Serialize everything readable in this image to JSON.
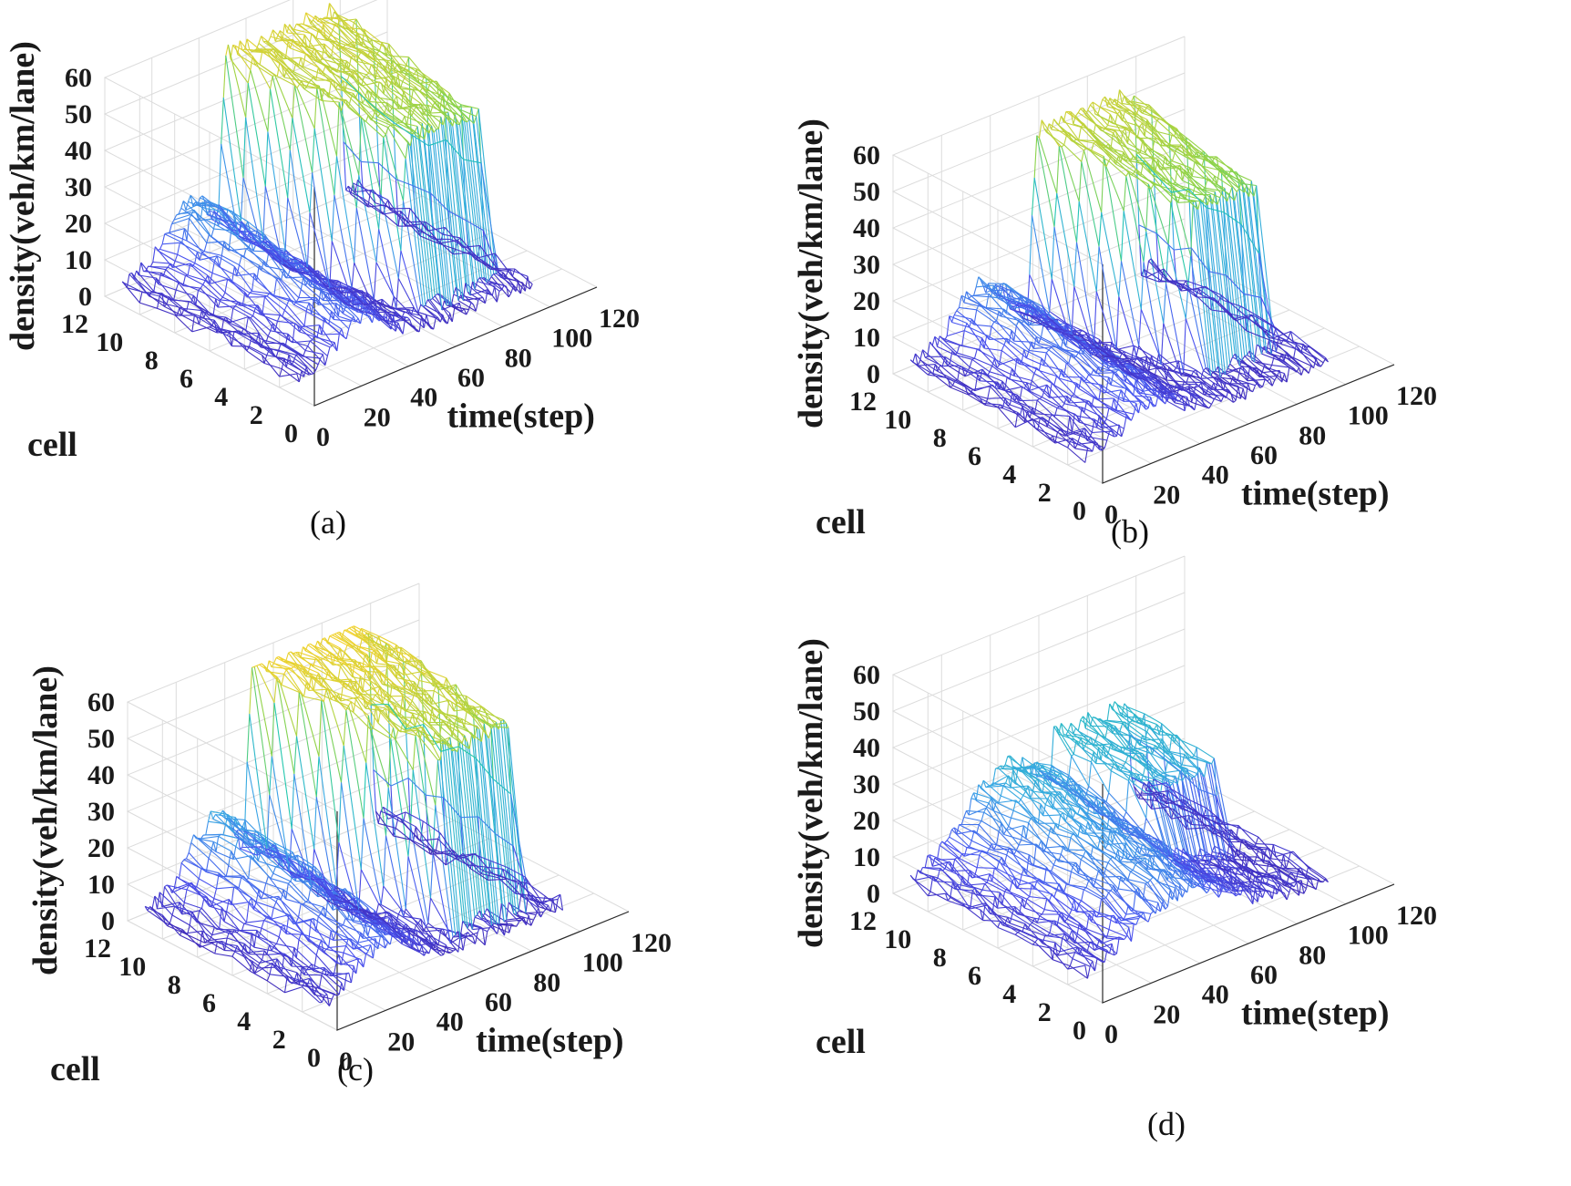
{
  "figure": {
    "panels": [
      {
        "id": "a",
        "caption": "(a)"
      },
      {
        "id": "b",
        "caption": "(b)"
      },
      {
        "id": "c",
        "caption": "(c)"
      },
      {
        "id": "d",
        "caption": "(d)"
      }
    ]
  },
  "chart_data": [
    {
      "type": "surface-mesh",
      "panel": "a",
      "caption": "(a)",
      "xlabel": "time(step)",
      "ylabel": "cell",
      "zlabel": "density(veh/km/lane)",
      "xlim": [
        0,
        120
      ],
      "ylim": [
        0,
        12
      ],
      "zlim": [
        0,
        60
      ],
      "xticks": [
        "0",
        "20",
        "40",
        "60",
        "80",
        "100",
        "120"
      ],
      "yticks": [
        "0",
        "2",
        "4",
        "6",
        "8",
        "10",
        "12"
      ],
      "zticks": [
        "0",
        "10",
        "20",
        "30",
        "40",
        "50",
        "60"
      ],
      "time_steps": [
        0,
        100
      ],
      "cells": [
        1,
        11
      ],
      "base_density": 5,
      "upstream_plateau": {
        "max": 22,
        "peak_time": 28,
        "spread": 14
      },
      "congestion": {
        "max": 57,
        "start": 40,
        "end": 95,
        "front_cell": 3,
        "onset_slope": 2.2
      },
      "noise": 2.5,
      "colormap": [
        "#3d1fa8",
        "#4a52f0",
        "#3aa6e6",
        "#20c7b0",
        "#8ad34a",
        "#f2d22e"
      ]
    },
    {
      "type": "surface-mesh",
      "panel": "b",
      "caption": "(b)",
      "xlabel": "time(step)",
      "ylabel": "cell",
      "zlabel": "density(veh/km/lane)",
      "xlim": [
        0,
        120
      ],
      "ylim": [
        0,
        12
      ],
      "zlim": [
        0,
        60
      ],
      "xticks": [
        "0",
        "20",
        "40",
        "60",
        "80",
        "100",
        "120"
      ],
      "yticks": [
        "0",
        "2",
        "4",
        "6",
        "8",
        "10",
        "12"
      ],
      "zticks": [
        "0",
        "10",
        "20",
        "30",
        "40",
        "50",
        "60"
      ],
      "time_steps": [
        0,
        100
      ],
      "cells": [
        1,
        11
      ],
      "base_density": 5,
      "upstream_plateau": {
        "max": 20,
        "peak_time": 28,
        "spread": 14
      },
      "congestion": {
        "max": 55,
        "start": 48,
        "end": 95,
        "front_cell": 4,
        "onset_slope": 2.0
      },
      "noise": 2.5,
      "colormap": [
        "#3d1fa8",
        "#4a52f0",
        "#3aa6e6",
        "#20c7b0",
        "#8ad34a",
        "#f2d22e"
      ]
    },
    {
      "type": "surface-mesh",
      "panel": "c",
      "caption": "(c)",
      "xlabel": "time(step)",
      "ylabel": "cell",
      "zlabel": "density(veh/km/lane)",
      "xlim": [
        0,
        120
      ],
      "ylim": [
        0,
        12
      ],
      "zlim": [
        0,
        60
      ],
      "xticks": [
        "0",
        "20",
        "40",
        "60",
        "80",
        "100",
        "120"
      ],
      "yticks": [
        "0",
        "2",
        "4",
        "6",
        "8",
        "10",
        "12"
      ],
      "zticks": [
        "0",
        "10",
        "20",
        "30",
        "40",
        "50",
        "60"
      ],
      "time_steps": [
        0,
        100
      ],
      "cells": [
        1,
        11
      ],
      "base_density": 5,
      "upstream_plateau": {
        "max": 24,
        "peak_time": 28,
        "spread": 14
      },
      "congestion": {
        "max": 60,
        "start": 40,
        "end": 95,
        "front_cell": 3,
        "onset_slope": 2.4
      },
      "noise": 3.0,
      "colormap": [
        "#3d1fa8",
        "#4a52f0",
        "#3aa6e6",
        "#20c7b0",
        "#8ad34a",
        "#f2d22e"
      ]
    },
    {
      "type": "surface-mesh",
      "panel": "d",
      "caption": "(d)",
      "xlabel": "time(step)",
      "ylabel": "cell",
      "zlabel": "density(veh/km/lane)",
      "xlim": [
        0,
        120
      ],
      "ylim": [
        0,
        12
      ],
      "zlim": [
        0,
        60
      ],
      "xticks": [
        "0",
        "20",
        "40",
        "60",
        "80",
        "100",
        "120"
      ],
      "yticks": [
        "0",
        "2",
        "4",
        "6",
        "8",
        "10",
        "12"
      ],
      "zticks": [
        "0",
        "10",
        "20",
        "30",
        "40",
        "50",
        "60"
      ],
      "time_steps": [
        0,
        100
      ],
      "cells": [
        1,
        11
      ],
      "base_density": 5,
      "upstream_plateau": {
        "max": 28,
        "peak_time": 40,
        "spread": 25
      },
      "congestion": {
        "max": 30,
        "start": 55,
        "end": 92,
        "front_cell": 6,
        "onset_slope": 0.6
      },
      "noise": 2.5,
      "colormap": [
        "#3d1fa8",
        "#4a52f0",
        "#3aa6e6",
        "#20c7b0",
        "#8ad34a",
        "#f2d22e"
      ]
    }
  ]
}
